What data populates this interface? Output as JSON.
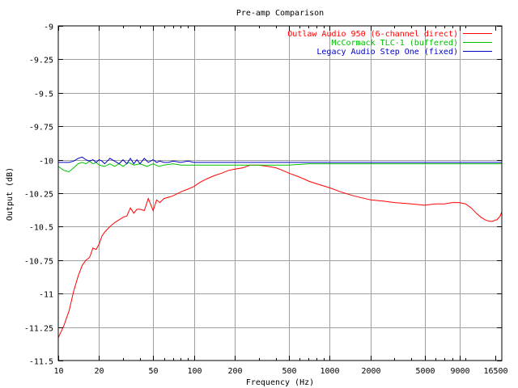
{
  "chart_data": {
    "type": "line",
    "title": "Pre-amp Comparison",
    "xlabel": "Frequency (Hz)",
    "ylabel": "Output (dB)",
    "xscale": "log",
    "xlim": [
      10,
      18500
    ],
    "ylim": [
      -11.5,
      -9
    ],
    "grid": true,
    "legend_position": "top-right",
    "x_ticks": [
      10,
      20,
      50,
      100,
      200,
      500,
      1000,
      2000,
      5000,
      9000,
      16500
    ],
    "x_tick_labels": [
      "10",
      "20",
      "50",
      "100",
      "200",
      "500",
      "1000",
      "2000",
      "5000",
      "9000",
      "16500"
    ],
    "y_ticks": [
      -9,
      -9.25,
      -9.5,
      -9.75,
      -10,
      -10.25,
      -10.5,
      -10.75,
      -11,
      -11.25,
      -11.5
    ],
    "y_tick_labels": [
      "-9",
      "-9.25",
      "-9.5",
      "-9.75",
      "-10",
      "-10.25",
      "-10.5",
      "-10.75",
      "-11",
      "-11.25",
      "-11.5"
    ],
    "series": [
      {
        "name": "Outlaw Audio 950 (6-channel direct)",
        "color": "#ff0000",
        "x": [
          10,
          11,
          12,
          13,
          14,
          15,
          16,
          17,
          18,
          19,
          20,
          21,
          22,
          24,
          26,
          28,
          30,
          32,
          34,
          36,
          38,
          40,
          43,
          46,
          50,
          53,
          56,
          60,
          65,
          70,
          80,
          90,
          100,
          110,
          120,
          140,
          160,
          180,
          200,
          230,
          260,
          300,
          350,
          400,
          450,
          500,
          600,
          700,
          800,
          1000,
          1200,
          1500,
          2000,
          2500,
          3000,
          4000,
          5000,
          6000,
          7000,
          8000,
          9000,
          10000,
          11000,
          12000,
          13000,
          14000,
          15000,
          16000,
          16500,
          17000,
          18000,
          18500
        ],
        "y": [
          -11.33,
          -11.24,
          -11.13,
          -10.98,
          -10.87,
          -10.79,
          -10.75,
          -10.73,
          -10.66,
          -10.67,
          -10.63,
          -10.57,
          -10.54,
          -10.5,
          -10.47,
          -10.45,
          -10.43,
          -10.42,
          -10.36,
          -10.4,
          -10.37,
          -10.37,
          -10.38,
          -10.29,
          -10.38,
          -10.3,
          -10.32,
          -10.29,
          -10.28,
          -10.27,
          -10.24,
          -10.22,
          -10.2,
          -10.17,
          -10.15,
          -10.12,
          -10.1,
          -10.08,
          -10.07,
          -10.06,
          -10.04,
          -10.04,
          -10.05,
          -10.06,
          -10.08,
          -10.1,
          -10.13,
          -10.16,
          -10.18,
          -10.21,
          -10.24,
          -10.27,
          -10.3,
          -10.31,
          -10.32,
          -10.33,
          -10.34,
          -10.33,
          -10.33,
          -10.32,
          -10.32,
          -10.33,
          -10.36,
          -10.4,
          -10.43,
          -10.45,
          -10.46,
          -10.46,
          -10.45,
          -10.45,
          -10.42,
          -10.39
        ]
      },
      {
        "name": "McCormack TLC-1 (buffered)",
        "color": "#00c000",
        "x": [
          10,
          11,
          12,
          13,
          14,
          15,
          16,
          17,
          18,
          19,
          20,
          22,
          24,
          26,
          28,
          30,
          33,
          36,
          40,
          45,
          50,
          55,
          60,
          70,
          80,
          90,
          100,
          120,
          150,
          200,
          300,
          500,
          700,
          1000,
          2000,
          5000,
          10000,
          18500
        ],
        "y": [
          -10.05,
          -10.08,
          -10.09,
          -10.06,
          -10.03,
          -10.02,
          -10.03,
          -10.01,
          -10.03,
          -10.02,
          -10.04,
          -10.05,
          -10.03,
          -10.05,
          -10.03,
          -10.05,
          -10.02,
          -10.04,
          -10.03,
          -10.05,
          -10.03,
          -10.05,
          -10.04,
          -10.03,
          -10.04,
          -10.04,
          -10.04,
          -10.04,
          -10.04,
          -10.04,
          -10.04,
          -10.04,
          -10.03,
          -10.03,
          -10.03,
          -10.03,
          -10.03,
          -10.03
        ]
      },
      {
        "name": "Legacy Audio Step One (fixed)",
        "color": "#0000c0",
        "x": [
          10,
          11,
          12,
          13,
          14,
          15,
          16,
          17,
          18,
          19,
          20,
          21,
          22,
          24,
          26,
          28,
          30,
          32,
          34,
          36,
          38,
          40,
          43,
          46,
          50,
          53,
          56,
          60,
          65,
          70,
          80,
          90,
          100,
          120,
          150,
          200,
          300,
          500,
          700,
          1000,
          2000,
          5000,
          10000,
          18500
        ],
        "y": [
          -10.02,
          -10.02,
          -10.02,
          -10.01,
          -9.99,
          -9.98,
          -10.0,
          -10.01,
          -10.0,
          -10.02,
          -10.0,
          -10.01,
          -10.03,
          -9.99,
          -10.01,
          -10.03,
          -10.0,
          -10.03,
          -9.99,
          -10.03,
          -10.0,
          -10.03,
          -9.99,
          -10.02,
          -10.0,
          -10.02,
          -10.01,
          -10.02,
          -10.02,
          -10.01,
          -10.02,
          -10.01,
          -10.02,
          -10.02,
          -10.02,
          -10.02,
          -10.02,
          -10.02,
          -10.02,
          -10.02,
          -10.02,
          -10.02,
          -10.02,
          -10.02
        ]
      }
    ]
  }
}
